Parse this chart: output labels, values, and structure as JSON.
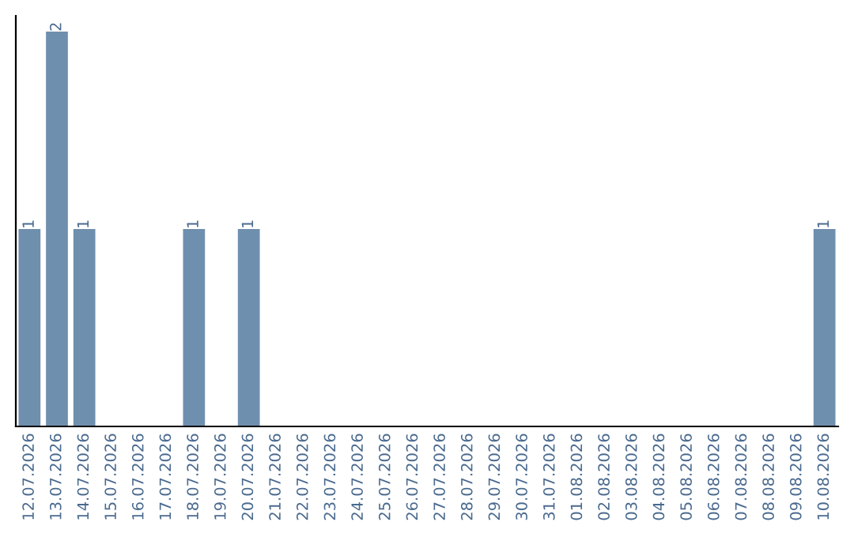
{
  "chart_data": {
    "type": "bar",
    "categories": [
      "12.07.2026",
      "13.07.2026",
      "14.07.2026",
      "15.07.2026",
      "16.07.2026",
      "17.07.2026",
      "18.07.2026",
      "19.07.2026",
      "20.07.2026",
      "21.07.2026",
      "22.07.2026",
      "23.07.2026",
      "24.07.2026",
      "25.07.2026",
      "26.07.2026",
      "27.07.2026",
      "28.07.2026",
      "29.07.2026",
      "30.07.2026",
      "31.07.2026",
      "01.08.2026",
      "02.08.2026",
      "03.08.2026",
      "04.08.2026",
      "05.08.2026",
      "06.08.2026",
      "07.08.2026",
      "08.08.2026",
      "09.08.2026",
      "10.08.2026"
    ],
    "values": [
      1,
      2,
      1,
      0,
      0,
      0,
      1,
      0,
      1,
      0,
      0,
      0,
      0,
      0,
      0,
      0,
      0,
      0,
      0,
      0,
      0,
      0,
      0,
      0,
      0,
      0,
      0,
      0,
      0,
      1
    ],
    "value_labels": [
      "1",
      "2",
      "1",
      null,
      null,
      null,
      "1",
      null,
      "1",
      null,
      null,
      null,
      null,
      null,
      null,
      null,
      null,
      null,
      null,
      null,
      null,
      null,
      null,
      null,
      null,
      null,
      null,
      null,
      null,
      "1"
    ],
    "color": "#6f8fae",
    "ylim": [
      0,
      2.08
    ],
    "tick_labels": "x",
    "grid": false,
    "legend": false
  }
}
